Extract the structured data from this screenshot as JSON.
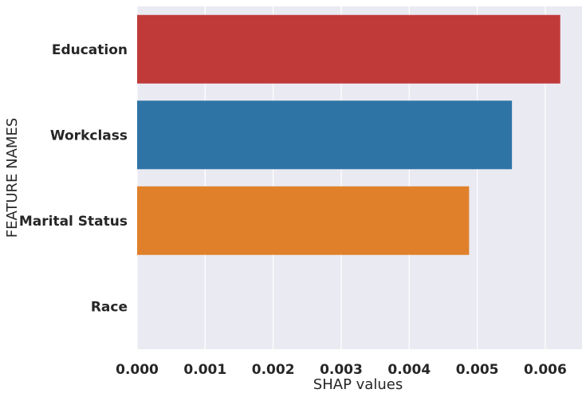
{
  "chart_data": {
    "type": "bar",
    "orientation": "horizontal",
    "categories": [
      "Education",
      "Workclass",
      "Marital Status",
      "Race"
    ],
    "values": [
      0.00622,
      0.00551,
      0.00488,
      0.0
    ],
    "colors": [
      "#c03a3a",
      "#2e75a6",
      "#e1802b",
      "#9467bd"
    ],
    "xlabel": "SHAP values",
    "ylabel": "FEATURE NAMES",
    "xlim": [
      0,
      0.00654
    ],
    "xticks": [
      "0.000",
      "0.001",
      "0.002",
      "0.003",
      "0.004",
      "0.005",
      "0.006"
    ],
    "grid": true,
    "plot_background": "#eaeaf2",
    "grid_color": "#ffffff"
  }
}
